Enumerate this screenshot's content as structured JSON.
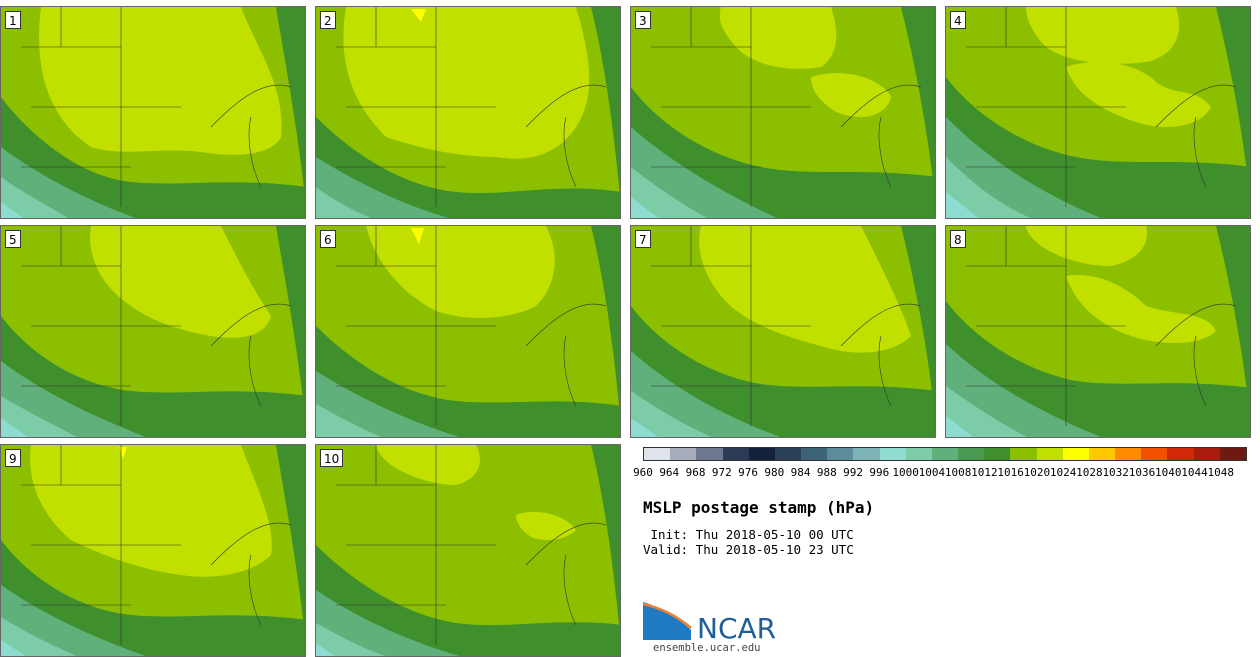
{
  "stamps": [
    {
      "label": "1"
    },
    {
      "label": "2"
    },
    {
      "label": "3"
    },
    {
      "label": "4"
    },
    {
      "label": "5"
    },
    {
      "label": "6"
    },
    {
      "label": "7"
    },
    {
      "label": "8"
    },
    {
      "label": "9"
    },
    {
      "label": "10"
    }
  ],
  "colorbar": {
    "ticks": [
      "960",
      "964",
      "968",
      "972",
      "976",
      "980",
      "984",
      "988",
      "992",
      "996",
      "1000",
      "1004",
      "1008",
      "1012",
      "1016",
      "1020",
      "1024",
      "1028",
      "1032",
      "1036",
      "1040",
      "1044",
      "1048"
    ],
    "colors": [
      "#dfe3ea",
      "#a8adbb",
      "#6e7790",
      "#2d3a55",
      "#13223a",
      "#2a4157",
      "#3d6378",
      "#5c8c9a",
      "#7cb4b8",
      "#8edcd0",
      "#7ccca8",
      "#5fb07a",
      "#4b9a52",
      "#3f8f2c",
      "#8bbf00",
      "#c2e000",
      "#ffff00",
      "#ffc800",
      "#ff8c00",
      "#f05000",
      "#d02808",
      "#a81c0c",
      "#6e1a10"
    ]
  },
  "title": "MSLP postage stamp (hPa)",
  "init": " Init: Thu 2018-05-10 00 UTC",
  "valid": "Valid: Thu 2018-05-10 23 UTC",
  "logo": {
    "text": "NCAR",
    "site": "ensemble.ucar.edu"
  }
}
